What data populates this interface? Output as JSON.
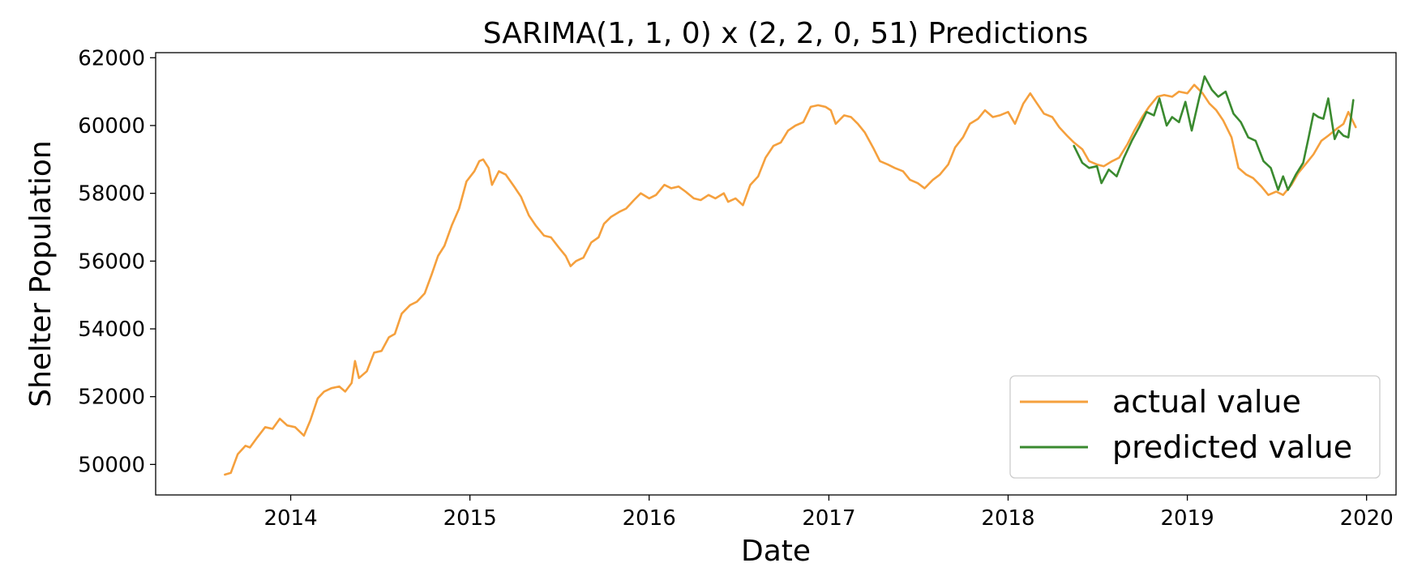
{
  "chart_data": {
    "type": "line",
    "title": "SARIMA(1, 1, 0) x (2, 2, 0, 51) Predictions",
    "xlabel": "Date",
    "ylabel": "Shelter Population",
    "xlim": [
      "2013-04-01",
      "2020-03-01"
    ],
    "ylim": [
      49100,
      62150
    ],
    "x_ticks": [
      {
        "date": "2014-01-01",
        "label": "2014"
      },
      {
        "date": "2015-01-01",
        "label": "2015"
      },
      {
        "date": "2016-01-01",
        "label": "2016"
      },
      {
        "date": "2017-01-01",
        "label": "2017"
      },
      {
        "date": "2018-01-01",
        "label": "2018"
      },
      {
        "date": "2019-01-01",
        "label": "2019"
      },
      {
        "date": "2020-01-01",
        "label": "2020"
      }
    ],
    "y_ticks": [
      50000,
      52000,
      54000,
      56000,
      58000,
      60000,
      62000
    ],
    "grid": false,
    "legend": "lower-right",
    "series": [
      {
        "name": "actual value",
        "color": "#f5a03d",
        "points": [
          [
            "2013-08-20",
            49700
          ],
          [
            "2013-09-01",
            49750
          ],
          [
            "2013-09-15",
            50300
          ],
          [
            "2013-10-01",
            50550
          ],
          [
            "2013-10-10",
            50500
          ],
          [
            "2013-10-25",
            50800
          ],
          [
            "2013-11-10",
            51100
          ],
          [
            "2013-11-25",
            51050
          ],
          [
            "2013-12-10",
            51350
          ],
          [
            "2013-12-25",
            51150
          ],
          [
            "2014-01-10",
            51100
          ],
          [
            "2014-01-28",
            50850
          ],
          [
            "2014-02-10",
            51300
          ],
          [
            "2014-02-25",
            51950
          ],
          [
            "2014-03-10",
            52150
          ],
          [
            "2014-03-25",
            52250
          ],
          [
            "2014-04-10",
            52300
          ],
          [
            "2014-04-22",
            52150
          ],
          [
            "2014-05-05",
            52400
          ],
          [
            "2014-05-12",
            53050
          ],
          [
            "2014-05-20",
            52550
          ],
          [
            "2014-06-05",
            52750
          ],
          [
            "2014-06-20",
            53300
          ],
          [
            "2014-07-05",
            53350
          ],
          [
            "2014-07-20",
            53750
          ],
          [
            "2014-08-01",
            53850
          ],
          [
            "2014-08-15",
            54450
          ],
          [
            "2014-09-01",
            54700
          ],
          [
            "2014-09-15",
            54800
          ],
          [
            "2014-10-01",
            55050
          ],
          [
            "2014-10-15",
            55600
          ],
          [
            "2014-10-28",
            56150
          ],
          [
            "2014-11-10",
            56450
          ],
          [
            "2014-11-25",
            57050
          ],
          [
            "2014-12-10",
            57550
          ],
          [
            "2014-12-25",
            58350
          ],
          [
            "2015-01-10",
            58650
          ],
          [
            "2015-01-20",
            58950
          ],
          [
            "2015-01-28",
            59000
          ],
          [
            "2015-02-08",
            58750
          ],
          [
            "2015-02-15",
            58250
          ],
          [
            "2015-03-01",
            58650
          ],
          [
            "2015-03-15",
            58550
          ],
          [
            "2015-04-01",
            58200
          ],
          [
            "2015-04-15",
            57900
          ],
          [
            "2015-05-01",
            57350
          ],
          [
            "2015-05-15",
            57050
          ],
          [
            "2015-06-01",
            56750
          ],
          [
            "2015-06-15",
            56700
          ],
          [
            "2015-07-01",
            56400
          ],
          [
            "2015-07-15",
            56150
          ],
          [
            "2015-07-25",
            55850
          ],
          [
            "2015-08-05",
            56000
          ],
          [
            "2015-08-20",
            56100
          ],
          [
            "2015-09-05",
            56550
          ],
          [
            "2015-09-20",
            56700
          ],
          [
            "2015-10-01",
            57100
          ],
          [
            "2015-10-15",
            57300
          ],
          [
            "2015-11-01",
            57450
          ],
          [
            "2015-11-15",
            57550
          ],
          [
            "2015-12-01",
            57800
          ],
          [
            "2015-12-15",
            58000
          ],
          [
            "2016-01-01",
            57850
          ],
          [
            "2016-01-15",
            57950
          ],
          [
            "2016-02-01",
            58250
          ],
          [
            "2016-02-15",
            58150
          ],
          [
            "2016-03-01",
            58200
          ],
          [
            "2016-03-15",
            58050
          ],
          [
            "2016-04-01",
            57850
          ],
          [
            "2016-04-15",
            57800
          ],
          [
            "2016-05-01",
            57950
          ],
          [
            "2016-05-15",
            57850
          ],
          [
            "2016-06-01",
            58000
          ],
          [
            "2016-06-10",
            57750
          ],
          [
            "2016-06-25",
            57850
          ],
          [
            "2016-07-10",
            57650
          ],
          [
            "2016-07-25",
            58250
          ],
          [
            "2016-08-10",
            58500
          ],
          [
            "2016-08-25",
            59050
          ],
          [
            "2016-09-10",
            59400
          ],
          [
            "2016-09-25",
            59500
          ],
          [
            "2016-10-10",
            59850
          ],
          [
            "2016-10-25",
            60000
          ],
          [
            "2016-11-10",
            60100
          ],
          [
            "2016-11-25",
            60550
          ],
          [
            "2016-12-10",
            60600
          ],
          [
            "2016-12-25",
            60550
          ],
          [
            "2017-01-05",
            60450
          ],
          [
            "2017-01-15",
            60050
          ],
          [
            "2017-02-01",
            60300
          ],
          [
            "2017-02-15",
            60250
          ],
          [
            "2017-03-01",
            60050
          ],
          [
            "2017-03-15",
            59800
          ],
          [
            "2017-04-01",
            59350
          ],
          [
            "2017-04-15",
            58950
          ],
          [
            "2017-05-01",
            58850
          ],
          [
            "2017-05-15",
            58750
          ],
          [
            "2017-06-01",
            58650
          ],
          [
            "2017-06-15",
            58400
          ],
          [
            "2017-07-01",
            58300
          ],
          [
            "2017-07-15",
            58150
          ],
          [
            "2017-08-01",
            58400
          ],
          [
            "2017-08-15",
            58550
          ],
          [
            "2017-09-01",
            58850
          ],
          [
            "2017-09-15",
            59350
          ],
          [
            "2017-10-01",
            59650
          ],
          [
            "2017-10-15",
            60050
          ],
          [
            "2017-11-01",
            60200
          ],
          [
            "2017-11-15",
            60450
          ],
          [
            "2017-12-01",
            60250
          ],
          [
            "2017-12-15",
            60300
          ],
          [
            "2018-01-01",
            60400
          ],
          [
            "2018-01-15",
            60050
          ],
          [
            "2018-02-01",
            60650
          ],
          [
            "2018-02-15",
            60950
          ],
          [
            "2018-03-01",
            60650
          ],
          [
            "2018-03-15",
            60350
          ],
          [
            "2018-04-01",
            60250
          ],
          [
            "2018-04-15",
            59950
          ],
          [
            "2018-05-01",
            59700
          ],
          [
            "2018-05-15",
            59500
          ],
          [
            "2018-06-01",
            59300
          ],
          [
            "2018-06-15",
            58950
          ],
          [
            "2018-07-01",
            58850
          ],
          [
            "2018-07-15",
            58800
          ],
          [
            "2018-08-01",
            58950
          ],
          [
            "2018-08-15",
            59050
          ],
          [
            "2018-09-01",
            59450
          ],
          [
            "2018-09-15",
            59850
          ],
          [
            "2018-10-01",
            60250
          ],
          [
            "2018-10-15",
            60550
          ],
          [
            "2018-11-01",
            60850
          ],
          [
            "2018-11-15",
            60900
          ],
          [
            "2018-12-01",
            60850
          ],
          [
            "2018-12-15",
            61000
          ],
          [
            "2019-01-01",
            60950
          ],
          [
            "2019-01-15",
            61200
          ],
          [
            "2019-02-01",
            60950
          ],
          [
            "2019-02-15",
            60650
          ],
          [
            "2019-03-01",
            60450
          ],
          [
            "2019-03-15",
            60150
          ],
          [
            "2019-04-01",
            59650
          ],
          [
            "2019-04-15",
            58750
          ],
          [
            "2019-05-01",
            58550
          ],
          [
            "2019-05-15",
            58450
          ],
          [
            "2019-06-01",
            58200
          ],
          [
            "2019-06-15",
            57950
          ],
          [
            "2019-07-01",
            58050
          ],
          [
            "2019-07-15",
            57950
          ],
          [
            "2019-08-01",
            58250
          ],
          [
            "2019-08-15",
            58600
          ],
          [
            "2019-09-01",
            58900
          ],
          [
            "2019-09-15",
            59150
          ],
          [
            "2019-10-01",
            59550
          ],
          [
            "2019-10-15",
            59700
          ],
          [
            "2019-11-01",
            59900
          ],
          [
            "2019-11-15",
            60050
          ],
          [
            "2019-11-25",
            60400
          ],
          [
            "2019-12-05",
            60100
          ],
          [
            "2019-12-10",
            59950
          ]
        ]
      },
      {
        "name": "predicted value",
        "color": "#3a8a2f",
        "points": [
          [
            "2018-05-15",
            59400
          ],
          [
            "2018-06-01",
            58900
          ],
          [
            "2018-06-15",
            58750
          ],
          [
            "2018-07-01",
            58800
          ],
          [
            "2018-07-10",
            58300
          ],
          [
            "2018-07-25",
            58700
          ],
          [
            "2018-08-10",
            58500
          ],
          [
            "2018-08-25",
            59050
          ],
          [
            "2018-09-10",
            59550
          ],
          [
            "2018-09-25",
            59950
          ],
          [
            "2018-10-10",
            60400
          ],
          [
            "2018-10-25",
            60300
          ],
          [
            "2018-11-05",
            60800
          ],
          [
            "2018-11-20",
            60000
          ],
          [
            "2018-12-01",
            60250
          ],
          [
            "2018-12-15",
            60100
          ],
          [
            "2018-12-28",
            60700
          ],
          [
            "2019-01-10",
            59850
          ],
          [
            "2019-01-25",
            60800
          ],
          [
            "2019-02-05",
            61450
          ],
          [
            "2019-02-20",
            61050
          ],
          [
            "2019-03-05",
            60850
          ],
          [
            "2019-03-20",
            61000
          ],
          [
            "2019-04-05",
            60350
          ],
          [
            "2019-04-20",
            60100
          ],
          [
            "2019-05-05",
            59650
          ],
          [
            "2019-05-20",
            59550
          ],
          [
            "2019-06-05",
            58950
          ],
          [
            "2019-06-20",
            58750
          ],
          [
            "2019-07-05",
            58100
          ],
          [
            "2019-07-15",
            58500
          ],
          [
            "2019-07-25",
            58100
          ],
          [
            "2019-08-10",
            58550
          ],
          [
            "2019-08-25",
            58900
          ],
          [
            "2019-09-05",
            59650
          ],
          [
            "2019-09-15",
            60350
          ],
          [
            "2019-09-25",
            60250
          ],
          [
            "2019-10-05",
            60200
          ],
          [
            "2019-10-15",
            60800
          ],
          [
            "2019-10-28",
            59600
          ],
          [
            "2019-11-05",
            59850
          ],
          [
            "2019-11-15",
            59700
          ],
          [
            "2019-11-25",
            59650
          ],
          [
            "2019-12-05",
            60750
          ]
        ]
      }
    ]
  }
}
